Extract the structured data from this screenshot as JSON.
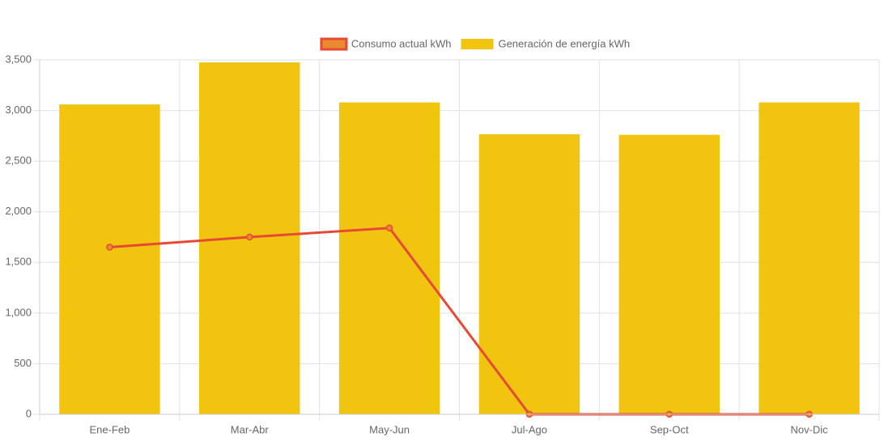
{
  "chart_data": {
    "type": "bar",
    "categories": [
      "Ene-Feb",
      "Mar-Abr",
      "May-Jun",
      "Jul-Ago",
      "Sep-Oct",
      "Nov-Dic"
    ],
    "series": [
      {
        "name": "Consumo actual kWh",
        "type": "line",
        "color": "#e64a35",
        "marker_color": "#ea8a2e",
        "values": [
          1650,
          1750,
          1840,
          0,
          0,
          0
        ]
      },
      {
        "name": "Generación de energía kWh",
        "type": "bar",
        "color": "#f0c40f",
        "values": [
          3060,
          3475,
          3080,
          2765,
          2760,
          3080
        ]
      }
    ],
    "ylim": [
      0,
      3500
    ],
    "yticks": [
      0,
      500,
      {
        "value": 1000,
        "label": "1,000"
      },
      {
        "value": 1500,
        "label": "1,500"
      },
      {
        "value": 2000,
        "label": "2,000"
      },
      {
        "value": 2500,
        "label": "2,500"
      },
      {
        "value": 3000,
        "label": "3,000"
      },
      {
        "value": 3500,
        "label": "3,500"
      }
    ],
    "grid": true,
    "legend": "top"
  }
}
